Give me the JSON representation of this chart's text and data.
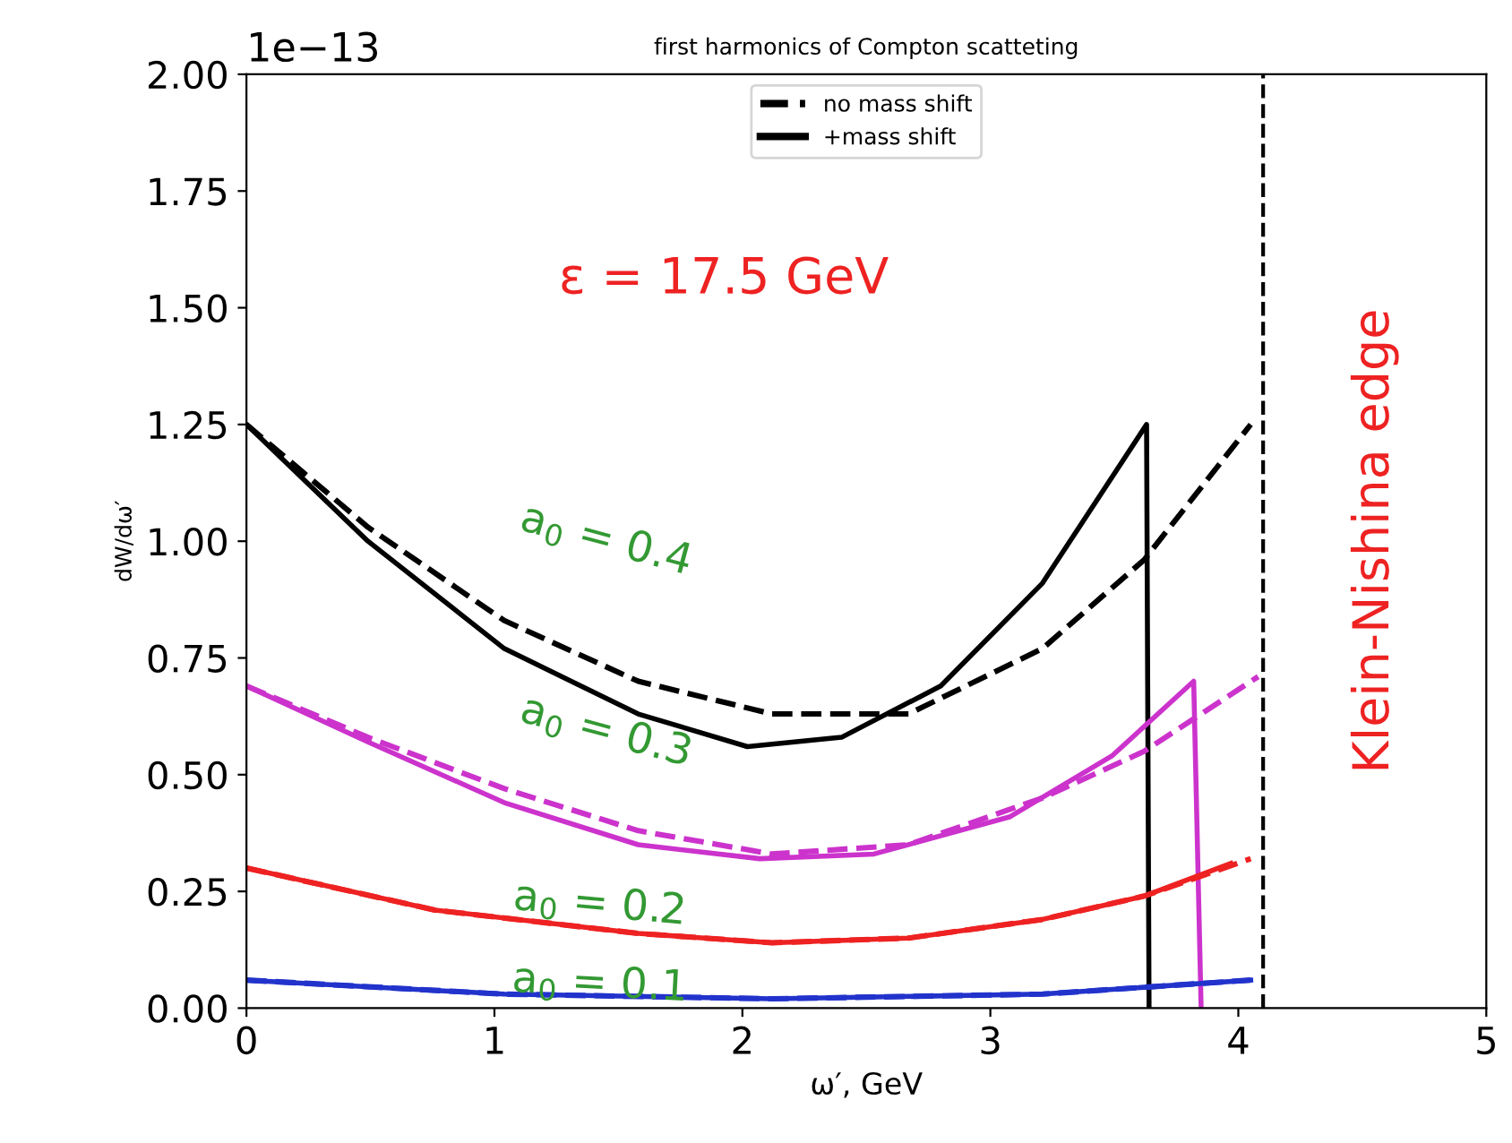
{
  "chart_data": {
    "type": "line",
    "title": "first harmonics of Compton scatteting",
    "xlabel": "ω′, GeV",
    "ylabel": "dW/dω′",
    "xlim": [
      0,
      5
    ],
    "xticks": [
      0,
      1,
      2,
      3,
      4,
      5
    ],
    "ylim": [
      0,
      2
    ],
    "yticks": [
      {
        "value": 0,
        "label": "0.00"
      },
      {
        "value": 0.25,
        "label": "0.25"
      },
      {
        "value": 0.5,
        "label": "0.50"
      },
      {
        "value": 0.75,
        "label": "0.75"
      },
      {
        "value": 1,
        "label": "1.00"
      },
      {
        "value": 1.25,
        "label": "1.25"
      },
      {
        "value": 1.5,
        "label": "1.50"
      },
      {
        "value": 1.75,
        "label": "1.75"
      },
      {
        "value": 2,
        "label": "2.00"
      }
    ],
    "grid": false,
    "legend": "top",
    "marker": "none",
    "series": [
      {
        "name": "no mass shift",
        "color": "#000000",
        "line_style": "dashed",
        "x": [
          0,
          0.49,
          1.04,
          1.58,
          2.12,
          2.67,
          3.21,
          3.62,
          4.05
        ],
        "values": [
          1.25,
          1.03,
          0.83,
          0.7,
          0.63,
          0.63,
          0.77,
          0.96,
          1.25
        ]
      },
      {
        "name": "+mass shift",
        "color": "#000000",
        "line_style": "solid",
        "x": [
          0,
          0.49,
          1.04,
          1.58,
          2.02,
          2.4,
          2.8,
          3.21,
          3.63,
          3.64
        ],
        "values": [
          1.25,
          1.0,
          0.77,
          0.63,
          0.56,
          0.58,
          0.69,
          0.91,
          1.25,
          0
        ]
      },
      {
        "color": "#cc33cc",
        "line_style": "dashed",
        "x": [
          0,
          0.49,
          1.04,
          1.58,
          2.12,
          2.67,
          3.21,
          3.62,
          4.08
        ],
        "values": [
          0.69,
          0.58,
          0.47,
          0.38,
          0.33,
          0.35,
          0.45,
          0.55,
          0.71
        ]
      },
      {
        "color": "#cc33cc",
        "line_style": "solid",
        "x": [
          0,
          0.49,
          1.04,
          1.58,
          2.07,
          2.53,
          3.08,
          3.49,
          3.82,
          3.85
        ],
        "values": [
          0.69,
          0.57,
          0.44,
          0.35,
          0.32,
          0.33,
          0.41,
          0.54,
          0.7,
          0
        ]
      },
      {
        "color": "#ee2222",
        "line_style": "dashed",
        "x": [
          0,
          0.76,
          1.58,
          2.12,
          2.67,
          3.21,
          3.62,
          4.05
        ],
        "values": [
          0.3,
          0.21,
          0.16,
          0.14,
          0.15,
          0.19,
          0.24,
          0.32
        ]
      },
      {
        "color": "#ee2222",
        "line_style": "solid",
        "x": [
          0,
          0.76,
          1.58,
          2.12,
          2.67,
          3.21,
          3.62,
          3.97
        ],
        "values": [
          0.3,
          0.21,
          0.16,
          0.14,
          0.15,
          0.19,
          0.24,
          0.31
        ]
      },
      {
        "color": "#2233cc",
        "line_style": "dashed",
        "x": [
          0,
          1.04,
          2.12,
          3.21,
          4.05
        ],
        "values": [
          0.06,
          0.03,
          0.02,
          0.03,
          0.06
        ]
      },
      {
        "color": "#2233cc",
        "line_style": "solid",
        "x": [
          0,
          1.04,
          2.12,
          3.21,
          4.05
        ],
        "values": [
          0.06,
          0.03,
          0.02,
          0.03,
          0.06
        ]
      }
    ],
    "ref_lines": [
      {
        "axis": "x",
        "value": 4.1,
        "label": "Klein-Nishina edge",
        "color": "#000000",
        "line_style": "dashed"
      }
    ],
    "annotations": [
      "1e−13",
      "ε = 17.5 GeV",
      "a$_{0}$ = 0.4",
      "a$_{0}$ = 0.3",
      "a$_{0}$ = 0.2",
      "a$_{0}$ = 0.1"
    ]
  }
}
